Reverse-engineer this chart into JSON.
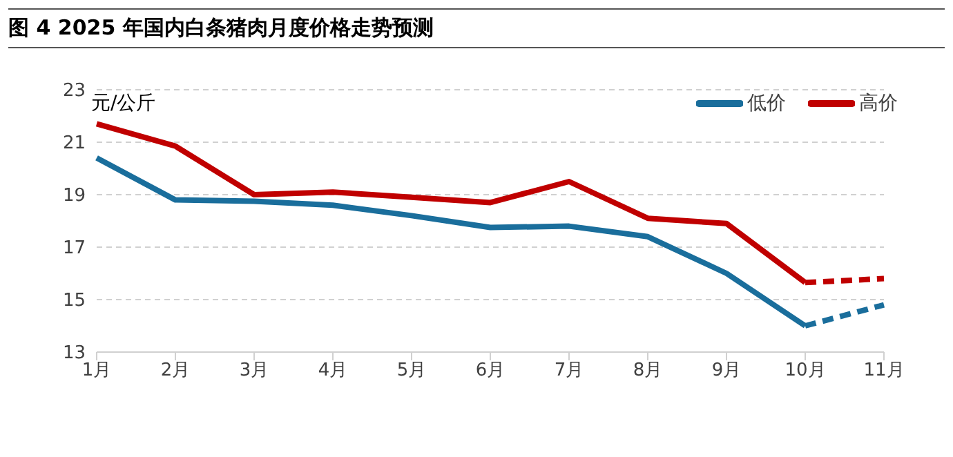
{
  "chart_data": {
    "type": "line",
    "title": "图 4 2025 年国内白条猪肉月度价格走势预测",
    "ylabel": "元/公斤",
    "categories": [
      "1月",
      "2月",
      "3月",
      "4月",
      "5月",
      "6月",
      "7月",
      "8月",
      "9月",
      "10月",
      "11月"
    ],
    "series": [
      {
        "name": "低价",
        "color": "#1a6e9c",
        "line_style": "solid",
        "values": [
          20.4,
          18.8,
          18.75,
          18.6,
          18.2,
          17.75,
          17.8,
          17.4,
          16.0,
          14.0,
          null
        ]
      },
      {
        "name": "高价",
        "color": "#c00000",
        "line_style": "solid",
        "values": [
          21.7,
          20.85,
          19.0,
          19.1,
          18.9,
          18.7,
          19.5,
          18.1,
          17.9,
          15.65,
          null
        ]
      },
      {
        "color": "#1a6e9c",
        "line_style": "dashed",
        "values": [
          null,
          null,
          null,
          null,
          null,
          null,
          null,
          null,
          null,
          14.0,
          14.8
        ]
      },
      {
        "color": "#c00000",
        "line_style": "dashed",
        "values": [
          null,
          null,
          null,
          null,
          null,
          null,
          null,
          null,
          null,
          15.65,
          15.8
        ]
      }
    ],
    "ylim": [
      13,
      23
    ],
    "yticks": [
      13,
      15,
      17,
      19,
      21,
      23
    ],
    "grid": "y",
    "legend": "top right",
    "marker": "none"
  }
}
